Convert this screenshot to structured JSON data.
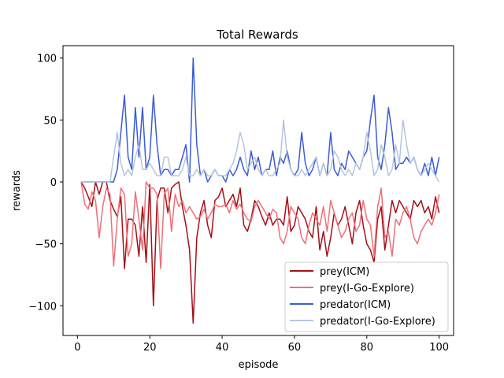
{
  "chart_data": {
    "type": "line",
    "title": "Total Rewards",
    "xlabel": "episode",
    "ylabel": "rewards",
    "xlim": [
      -4,
      104
    ],
    "ylim": [
      -124,
      110
    ],
    "xticks": [
      0,
      20,
      40,
      60,
      80,
      100
    ],
    "yticks": [
      -100,
      -50,
      0,
      50,
      100
    ],
    "grid": false,
    "legend_position": "lower-right",
    "series": [
      {
        "name": "prey(ICM)",
        "color": "#a50f15",
        "values": [
          0,
          -5,
          -12,
          -20,
          0,
          -10,
          0,
          0,
          -15,
          -22,
          -28,
          -12,
          -70,
          -30,
          -30,
          -35,
          -60,
          -20,
          -65,
          -2,
          -100,
          -15,
          -5,
          -5,
          -25,
          -5,
          -2,
          0,
          -20,
          -35,
          -55,
          -114,
          -45,
          -25,
          -15,
          -35,
          -45,
          -15,
          -12,
          -5,
          -20,
          -15,
          -10,
          -20,
          -5,
          -35,
          -40,
          -30,
          -15,
          -20,
          -28,
          -35,
          -25,
          -35,
          -30,
          -30,
          -35,
          -12,
          -40,
          -35,
          -20,
          -25,
          -30,
          -40,
          -45,
          -20,
          -55,
          -40,
          -60,
          -45,
          -25,
          -35,
          -30,
          -20,
          -35,
          -50,
          -25,
          -15,
          -35,
          -50,
          -55,
          -65,
          -30,
          -20,
          -55,
          -35,
          -15,
          -25,
          -15,
          -20,
          -25,
          -30,
          -15,
          -20,
          -15,
          -25,
          -20,
          -30,
          -12,
          -25
        ]
      },
      {
        "name": "prey(I-Go-Explore)",
        "color": "#ef6f7a",
        "values": [
          0,
          -18,
          -22,
          -8,
          -15,
          -45,
          -20,
          -5,
          -10,
          -68,
          -30,
          -5,
          -10,
          -60,
          -50,
          -8,
          -30,
          -55,
          0,
          -5,
          -5,
          -10,
          -70,
          -10,
          -5,
          -40,
          -10,
          -20,
          -15,
          -25,
          -20,
          -25,
          -30,
          -28,
          -22,
          -30,
          -25,
          -18,
          -20,
          -20,
          -18,
          -25,
          -15,
          -22,
          -18,
          -25,
          -30,
          -32,
          -20,
          -15,
          -20,
          -25,
          -30,
          -22,
          -25,
          -45,
          -50,
          -40,
          -20,
          -25,
          -30,
          -45,
          -50,
          -35,
          -25,
          -30,
          -35,
          -20,
          -40,
          -15,
          -25,
          -35,
          -45,
          -40,
          -30,
          -25,
          -40,
          -35,
          -15,
          -30,
          -35,
          -60,
          -20,
          -5,
          -45,
          -40,
          -60,
          -30,
          -35,
          -25,
          -20,
          -30,
          -45,
          -50,
          -40,
          -35,
          -30,
          -35,
          -25,
          -10
        ]
      },
      {
        "name": "predator(ICM)",
        "color": "#3c5bd6",
        "values": [
          0,
          0,
          0,
          0,
          0,
          0,
          0,
          0,
          0,
          0,
          10,
          40,
          70,
          20,
          10,
          60,
          20,
          60,
          10,
          20,
          70,
          30,
          5,
          10,
          10,
          5,
          10,
          10,
          20,
          30,
          0,
          100,
          30,
          5,
          10,
          0,
          5,
          10,
          5,
          5,
          0,
          10,
          5,
          10,
          20,
          10,
          5,
          25,
          10,
          20,
          5,
          10,
          10,
          25,
          5,
          20,
          15,
          25,
          10,
          5,
          10,
          40,
          15,
          5,
          10,
          20,
          5,
          15,
          5,
          40,
          10,
          5,
          15,
          10,
          25,
          20,
          15,
          10,
          20,
          25,
          50,
          70,
          20,
          10,
          30,
          60,
          40,
          10,
          15,
          15,
          20,
          15,
          20,
          10,
          5,
          15,
          5,
          20,
          5,
          20
        ]
      },
      {
        "name": "predator(I-Go-Explore)",
        "color": "#b4c5de",
        "values": [
          0,
          0,
          0,
          0,
          0,
          0,
          0,
          0,
          0,
          20,
          40,
          15,
          5,
          10,
          5,
          20,
          30,
          10,
          10,
          15,
          10,
          5,
          5,
          20,
          20,
          5,
          5,
          5,
          10,
          20,
          5,
          5,
          10,
          5,
          10,
          5,
          5,
          10,
          5,
          5,
          5,
          10,
          15,
          25,
          40,
          30,
          10,
          15,
          20,
          10,
          5,
          10,
          5,
          5,
          10,
          15,
          50,
          20,
          10,
          5,
          5,
          10,
          5,
          10,
          15,
          20,
          5,
          15,
          5,
          10,
          25,
          20,
          10,
          5,
          10,
          5,
          15,
          10,
          20,
          40,
          25,
          5,
          10,
          30,
          20,
          5,
          10,
          30,
          15,
          50,
          30,
          15,
          20,
          10,
          5,
          10,
          15,
          10,
          5,
          0
        ]
      }
    ]
  }
}
